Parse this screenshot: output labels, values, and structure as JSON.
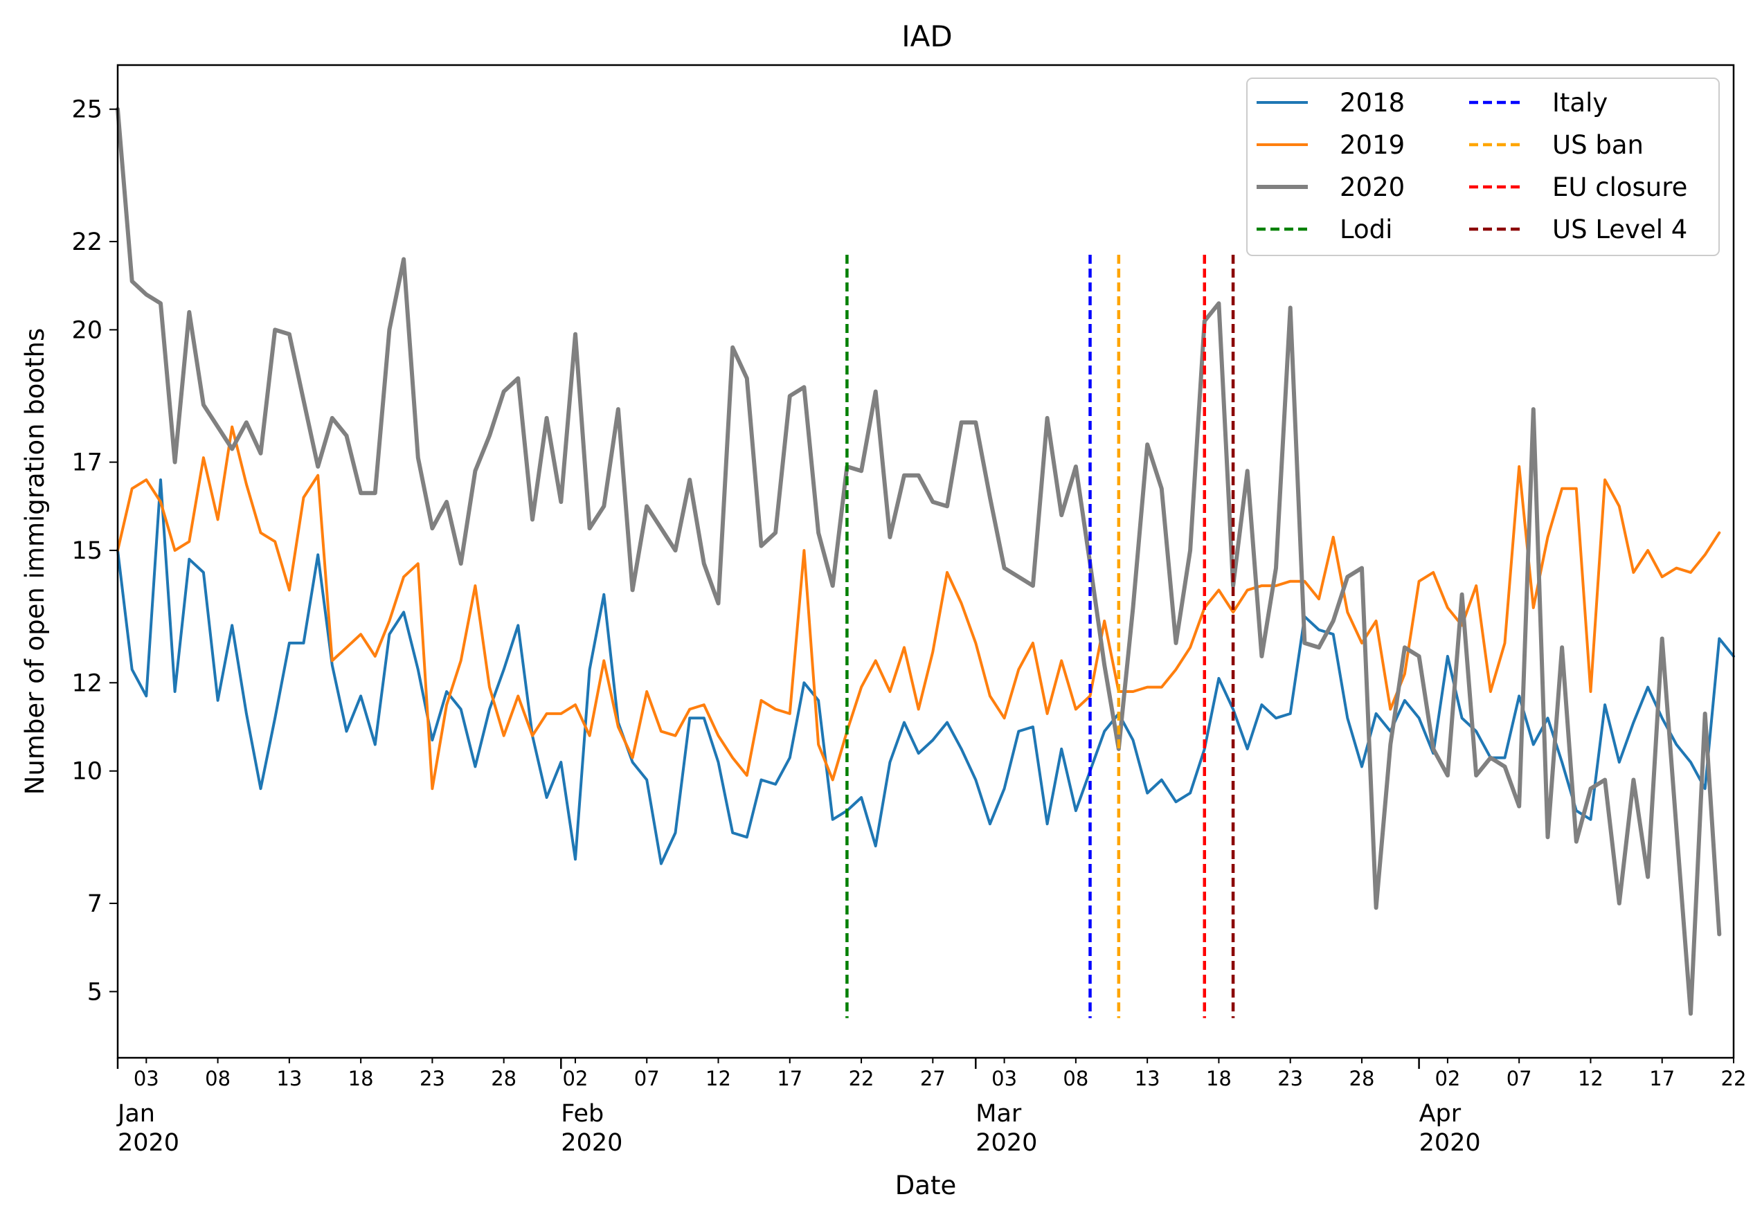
{
  "chart_data": {
    "type": "line",
    "title": "IAD",
    "xlabel": "Date",
    "ylabel": "Number of open immigration booths",
    "x_start": "2020-01-01",
    "x_end": "2020-04-22",
    "ylim": [
      3.5,
      26.0
    ],
    "yticks": [
      5,
      7,
      10,
      12,
      15,
      17,
      20,
      22,
      25
    ],
    "xticks_minor": [
      {
        "day": 3,
        "label": "03"
      },
      {
        "day": 8,
        "label": "08"
      },
      {
        "day": 13,
        "label": "13"
      },
      {
        "day": 18,
        "label": "18"
      },
      {
        "day": 23,
        "label": "23"
      },
      {
        "day": 28,
        "label": "28"
      },
      {
        "day": 33,
        "label": "02"
      },
      {
        "day": 38,
        "label": "07"
      },
      {
        "day": 43,
        "label": "12"
      },
      {
        "day": 48,
        "label": "17"
      },
      {
        "day": 53,
        "label": "22"
      },
      {
        "day": 58,
        "label": "27"
      },
      {
        "day": 63,
        "label": "03"
      },
      {
        "day": 68,
        "label": "08"
      },
      {
        "day": 73,
        "label": "13"
      },
      {
        "day": 78,
        "label": "18"
      },
      {
        "day": 83,
        "label": "23"
      },
      {
        "day": 88,
        "label": "28"
      },
      {
        "day": 94,
        "label": "02"
      },
      {
        "day": 99,
        "label": "07"
      },
      {
        "day": 104,
        "label": "12"
      },
      {
        "day": 109,
        "label": "17"
      },
      {
        "day": 114,
        "label": "22"
      }
    ],
    "xticks_major": [
      {
        "day": 1,
        "month": "Jan",
        "year": "2020"
      },
      {
        "day": 32,
        "month": "Feb",
        "year": "2020"
      },
      {
        "day": 61,
        "month": "Mar",
        "year": "2020"
      },
      {
        "day": 92,
        "month": "Apr",
        "year": "2020"
      }
    ],
    "series": [
      {
        "name": "2018",
        "color": "#1f77b4",
        "width": 4,
        "values": [
          15,
          12.3,
          11.7,
          16.6,
          11.8,
          14.8,
          14.5,
          11.6,
          13.3,
          11.3,
          9.6,
          11.2,
          12.9,
          12.9,
          14.9,
          12.4,
          10.9,
          11.7,
          10.6,
          13.1,
          13.6,
          12.3,
          10.7,
          11.8,
          11.4,
          10.1,
          11.4,
          12.3,
          13.3,
          10.8,
          9.4,
          10.2,
          8,
          12.3,
          14,
          11.1,
          10.2,
          9.8,
          7.9,
          8.6,
          11.2,
          11.2,
          10.2,
          8.6,
          8.5,
          9.8,
          9.7,
          10.3,
          12,
          11.6,
          8.9,
          9.1,
          9.4,
          8.3,
          10.2,
          11.1,
          10.4,
          10.7,
          11.1,
          10.5,
          9.8,
          8.8,
          9.6,
          10.9,
          11,
          8.8,
          10.5,
          9.1,
          10,
          10.9,
          11.3,
          10.7,
          9.5,
          9.8,
          9.3,
          9.5,
          10.5,
          12.1,
          11.4,
          10.5,
          11.5,
          11.2,
          11.3,
          13.5,
          13.2,
          13.1,
          11.2,
          10.1,
          11.3,
          10.9,
          11.6,
          11.2,
          10.4,
          12.6,
          11.2,
          10.9,
          10.3,
          10.3,
          11.7,
          10.6,
          11.2,
          10.2,
          9.1,
          8.9,
          11.5,
          10.2,
          11.1,
          11.9,
          11.2,
          10.6,
          10.2,
          9.6,
          13,
          12.6
        ]
      },
      {
        "name": "2019",
        "color": "#ff7f0e",
        "width": 4,
        "values": [
          15,
          16.4,
          16.6,
          16.1,
          15,
          15.2,
          17.1,
          15.7,
          17.8,
          16.5,
          15.4,
          15.2,
          14.1,
          16.2,
          16.7,
          12.5,
          12.8,
          13.1,
          12.6,
          13.4,
          14.4,
          14.7,
          9.6,
          11.5,
          12.5,
          14.2,
          11.9,
          10.8,
          11.7,
          10.8,
          11.3,
          11.3,
          11.5,
          10.8,
          12.5,
          11,
          10.3,
          11.8,
          10.9,
          10.8,
          11.4,
          11.5,
          10.8,
          10.3,
          9.9,
          11.6,
          11.4,
          11.3,
          15,
          10.6,
          9.8,
          10.9,
          11.9,
          12.5,
          11.8,
          12.8,
          11.4,
          12.7,
          14.5,
          13.8,
          12.9,
          11.7,
          11.2,
          12.3,
          12.9,
          11.3,
          12.5,
          11.4,
          11.7,
          13.4,
          11.8,
          11.8,
          11.9,
          11.9,
          12.3,
          12.8,
          13.7,
          14.1,
          13.6,
          14.1,
          14.2,
          14.2,
          14.3,
          14.3,
          13.9,
          15.3,
          13.6,
          12.9,
          13.4,
          11.4,
          12.2,
          14.3,
          14.5,
          13.7,
          13.3,
          14.2,
          11.8,
          12.9,
          16.9,
          13.7,
          15.3,
          16.4,
          16.4,
          11.8,
          16.6,
          16,
          14.5,
          15,
          14.4,
          14.6,
          14.5,
          14.9,
          15.4
        ]
      },
      {
        "name": "2020",
        "color": "#808080",
        "width": 6,
        "values": [
          25,
          21.1,
          20.8,
          20.6,
          17,
          20.4,
          18.3,
          17.8,
          17.3,
          17.9,
          17.2,
          20,
          19.9,
          18.4,
          16.9,
          18,
          17.6,
          16.3,
          16.3,
          20,
          21.6,
          17.1,
          15.5,
          16.1,
          14.7,
          16.8,
          17.6,
          18.6,
          18.9,
          15.7,
          18,
          16.1,
          19.9,
          15.5,
          16,
          18.2,
          14.1,
          16,
          15.5,
          15,
          16.6,
          14.7,
          13.8,
          19.6,
          18.9,
          15.1,
          15.4,
          18.5,
          18.7,
          15.4,
          14.2,
          16.9,
          16.8,
          18.6,
          15.3,
          16.7,
          16.7,
          16.1,
          16,
          17.9,
          17.9,
          16.2,
          14.6,
          14.4,
          14.2,
          18,
          15.8,
          16.9,
          14.7,
          12.4,
          10.5,
          13.7,
          17.4,
          16.4,
          12.9,
          15,
          20.2,
          20.6,
          14.2,
          16.8,
          12.6,
          14.6,
          20.5,
          12.9,
          12.8,
          13.4,
          14.4,
          14.6,
          6.9,
          10.6,
          12.8,
          12.6,
          10.5,
          9.9,
          14,
          9.9,
          10.3,
          10.1,
          9.2,
          18.2,
          8.5,
          12.8,
          8.4,
          9.6,
          9.8,
          7,
          9.8,
          7.6,
          13,
          8.7,
          4.5,
          11.3,
          6.3
        ]
      }
    ],
    "events": [
      {
        "name": "Lodi",
        "day": 52,
        "color": "#008000"
      },
      {
        "name": "Italy",
        "day": 69,
        "color": "#0000ff"
      },
      {
        "name": "US ban",
        "day": 71,
        "color": "#ffa500"
      },
      {
        "name": "EU closure",
        "day": 77,
        "color": "#ff0000"
      },
      {
        "name": "US Level 4",
        "day": 79,
        "color": "#8b0000"
      }
    ],
    "legend": {
      "placement": "top-right",
      "columns": 2,
      "entries": [
        "2018",
        "2019",
        "2020",
        "Lodi",
        "Italy",
        "US ban",
        "EU closure",
        "US Level 4"
      ]
    }
  }
}
